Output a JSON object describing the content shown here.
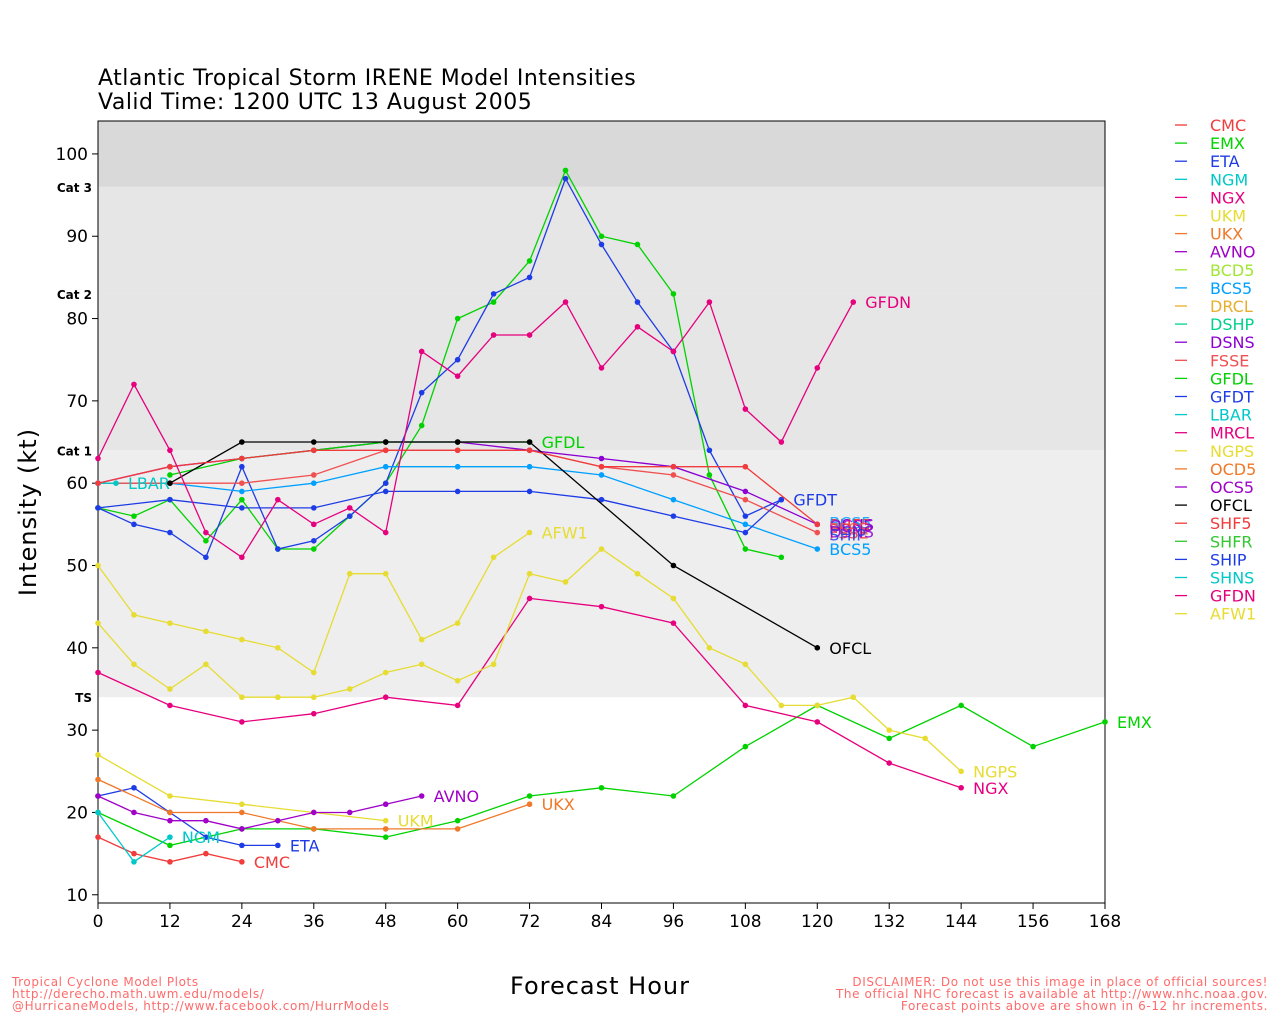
{
  "chart_data": {
    "type": "line",
    "title": "Atlantic Tropical Storm IRENE Model Intensities",
    "subtitle": "Valid Time: 1200 UTC 13 August 2005",
    "xlabel": "Forecast Hour",
    "ylabel": "Intensity (kt)",
    "xlim": [
      0,
      168
    ],
    "ylim": [
      9,
      104
    ],
    "xticks": [
      0,
      12,
      24,
      36,
      48,
      60,
      72,
      84,
      96,
      108,
      120,
      132,
      144,
      156,
      168
    ],
    "yticks": [
      10,
      20,
      30,
      40,
      50,
      60,
      70,
      80,
      90,
      100
    ],
    "bands": [
      {
        "label": "TS",
        "from": 34,
        "to": 64,
        "color": "#eeeeee"
      },
      {
        "label": "Cat 1",
        "from": 64,
        "to": 83,
        "color": "#e6e6e6"
      },
      {
        "label": "Cat 2",
        "from": 83,
        "to": 96,
        "color": "#e6e6e6"
      },
      {
        "label": "Cat 3",
        "from": 96,
        "to": 104,
        "color": "#d9d9d9"
      }
    ],
    "series": [
      {
        "name": "CMC",
        "color": "#f03c3c",
        "x": [
          0,
          6,
          12,
          18,
          24
        ],
        "y": [
          17,
          15,
          14,
          15,
          14
        ],
        "label": "CMC"
      },
      {
        "name": "EMX",
        "color": "#00d200",
        "x": [
          0,
          12,
          24,
          36,
          48,
          60,
          72,
          84,
          96,
          108,
          120,
          132,
          144,
          156,
          168
        ],
        "y": [
          20,
          16,
          18,
          18,
          17,
          19,
          22,
          23,
          22,
          28,
          33,
          29,
          33,
          28,
          31
        ],
        "label": "EMX"
      },
      {
        "name": "ETA",
        "color": "#1e3ce6",
        "x": [
          0,
          6,
          12,
          18,
          24,
          30
        ],
        "y": [
          22,
          23,
          20,
          17,
          16,
          16
        ],
        "label": "ETA"
      },
      {
        "name": "NGM",
        "color": "#00c8c8",
        "x": [
          0,
          6,
          12
        ],
        "y": [
          20,
          14,
          17
        ],
        "label": "NGM"
      },
      {
        "name": "NGX",
        "color": "#e6007e",
        "x": [
          0,
          12,
          24,
          36,
          48,
          60,
          72,
          84,
          96,
          108,
          120,
          132,
          144
        ],
        "y": [
          37,
          33,
          31,
          32,
          34,
          33,
          46,
          45,
          43,
          33,
          31,
          26,
          23
        ],
        "label": "NGX"
      },
      {
        "name": "UKM",
        "color": "#e6dc32",
        "x": [
          0,
          12,
          24,
          36,
          48
        ],
        "y": [
          27,
          22,
          21,
          20,
          19
        ],
        "label": "UKM"
      },
      {
        "name": "UKX",
        "color": "#f07828",
        "x": [
          0,
          12,
          24,
          36,
          48,
          60,
          72
        ],
        "y": [
          24,
          20,
          20,
          18,
          18,
          18,
          21
        ],
        "label": "UKX"
      },
      {
        "name": "AVNO",
        "color": "#a000c8",
        "x": [
          0,
          6,
          12,
          18,
          24,
          30,
          36,
          42,
          48,
          54
        ],
        "y": [
          22,
          20,
          19,
          19,
          18,
          19,
          20,
          20,
          21,
          22
        ],
        "label": "AVNO"
      },
      {
        "name": "BCD5",
        "color": "#a0e632",
        "x": [],
        "y": []
      },
      {
        "name": "BCS5",
        "color": "#00a0ff",
        "x": [
          0,
          12,
          24,
          36,
          48,
          60,
          72,
          84,
          96,
          108,
          120
        ],
        "y": [
          60,
          60,
          59,
          60,
          62,
          62,
          62,
          61,
          58,
          55,
          52
        ],
        "label": "BCS5"
      },
      {
        "name": "DRCL",
        "color": "#e6af2d",
        "x": [],
        "y": []
      },
      {
        "name": "DSHP",
        "color": "#00d28c",
        "x": [],
        "y": []
      },
      {
        "name": "DSNS",
        "color": "#8c00d2",
        "x": [
          0,
          12,
          24,
          36,
          48,
          60,
          72,
          84,
          96,
          108,
          120
        ],
        "y": [
          60,
          62,
          63,
          64,
          65,
          65,
          64,
          63,
          62,
          59,
          55
        ],
        "label": "DSNS"
      },
      {
        "name": "FSSE",
        "color": "#f05050",
        "x": [
          0,
          12,
          24,
          36,
          48,
          60,
          72,
          84,
          96,
          108,
          120
        ],
        "y": [
          60,
          60,
          60,
          61,
          64,
          64,
          64,
          62,
          61,
          58,
          54
        ],
        "label": "FSSE"
      },
      {
        "name": "GFDL",
        "color": "#00d200",
        "x": [
          12,
          24,
          36,
          48,
          60,
          72
        ],
        "y": [
          61,
          63,
          64,
          65,
          65,
          65
        ],
        "label": "GFDL"
      },
      {
        "name": "GFDT",
        "color": "#1e3ce6",
        "x": [
          0,
          12,
          24,
          36,
          48,
          60,
          72,
          84,
          96,
          108,
          114
        ],
        "y": [
          57,
          58,
          57,
          57,
          59,
          59,
          59,
          58,
          56,
          54,
          58
        ],
        "label": "GFDT"
      },
      {
        "name": "LBAR",
        "color": "#00c8c8",
        "x": [
          0,
          3
        ],
        "y": [
          60,
          60
        ],
        "label": "LBAR"
      },
      {
        "name": "MRCL",
        "color": "#e6007e",
        "x": [],
        "y": []
      },
      {
        "name": "NGPS",
        "color": "#e6dc32",
        "x": [
          0,
          6,
          12,
          18,
          24,
          30,
          36,
          42,
          48,
          54,
          60,
          66,
          72,
          78,
          84,
          90,
          96,
          102,
          108,
          114,
          120,
          126,
          132,
          138,
          144
        ],
        "y": [
          43,
          38,
          35,
          38,
          34,
          34,
          34,
          35,
          37,
          38,
          36,
          38,
          49,
          48,
          52,
          49,
          46,
          40,
          38,
          33,
          33,
          34,
          30,
          29,
          25
        ],
        "label": "NGPS"
      },
      {
        "name": "OCD5",
        "color": "#f07828",
        "x": [],
        "y": []
      },
      {
        "name": "OCS5",
        "color": "#a000c8",
        "x": [],
        "y": []
      },
      {
        "name": "OFCL",
        "color": "#000000",
        "x": [
          12,
          24,
          36,
          48,
          60,
          72,
          96,
          120
        ],
        "y": [
          60,
          65,
          65,
          65,
          65,
          65,
          50,
          40
        ],
        "label": "OFCL"
      },
      {
        "name": "SHF5",
        "color": "#f03c3c",
        "x": [
          0,
          12,
          24,
          36,
          48,
          60,
          72,
          84,
          96,
          108,
          120
        ],
        "y": [
          60,
          62,
          63,
          64,
          64,
          64,
          64,
          62,
          62,
          62,
          55
        ],
        "label": "SHF5"
      },
      {
        "name": "SHFR",
        "color": "#32c832",
        "x": [],
        "y": []
      },
      {
        "name": "SHIP",
        "color": "#1e3ce6",
        "x": [],
        "y": []
      },
      {
        "name": "SHNS",
        "color": "#00c8c8",
        "x": [],
        "y": []
      },
      {
        "name": "GFDN",
        "color": "#e6007e",
        "x": [
          0,
          6,
          12,
          18,
          24,
          30,
          36,
          42,
          48,
          54,
          60,
          66,
          72,
          78,
          84,
          90,
          96,
          102,
          108,
          114,
          120,
          126
        ],
        "y": [
          63,
          72,
          64,
          54,
          51,
          58,
          55,
          57,
          54,
          76,
          73,
          78,
          78,
          82,
          74,
          79,
          76,
          82,
          69,
          65,
          74,
          82
        ],
        "label": "GFDN"
      },
      {
        "name": "AFW1",
        "color": "#e6dc32",
        "x": [
          0,
          6,
          12,
          18,
          24,
          30,
          36,
          42,
          48,
          54,
          60,
          66,
          72
        ],
        "y": [
          50,
          44,
          43,
          42,
          41,
          40,
          37,
          49,
          49,
          41,
          43,
          51,
          54
        ],
        "label": "AFW1"
      }
    ],
    "extra_series": [
      {
        "name": "EMX-high",
        "color": "#00d200",
        "x": [
          0,
          6,
          12,
          18,
          24,
          30,
          36,
          42,
          48,
          54,
          60,
          66,
          72,
          78,
          84,
          90,
          96,
          102,
          108,
          114
        ],
        "y": [
          57,
          56,
          58,
          53,
          58,
          52,
          52,
          56,
          60,
          67,
          80,
          82,
          87,
          98,
          90,
          89,
          83,
          61,
          52,
          51
        ]
      },
      {
        "name": "ETA-high",
        "color": "#1e3ce6",
        "x": [
          0,
          6,
          12,
          18,
          24,
          30,
          36,
          42,
          48,
          54,
          60,
          66,
          72,
          78,
          84,
          90,
          96,
          102,
          108,
          114
        ],
        "y": [
          57,
          55,
          54,
          51,
          62,
          52,
          53,
          56,
          60,
          71,
          75,
          83,
          85,
          97,
          89,
          82,
          76,
          64,
          56,
          58
        ]
      }
    ],
    "overlap_labels": [
      "BCS5",
      "OCS5",
      "FSSE",
      "DSNS",
      "SHIP"
    ]
  },
  "texts": {
    "title_line1": "Atlantic Tropical Storm IRENE Model Intensities",
    "title_line2": "Valid Time: 1200 UTC 13 August 2005",
    "xlabel": "Forecast Hour",
    "ylabel": "Intensity (kt)",
    "footer_left": [
      "Tropical Cyclone Model Plots",
      "http://derecho.math.uwm.edu/models/",
      "@HurricaneModels, http://www.facebook.com/HurrModels"
    ],
    "footer_right": [
      "DISCLAIMER: Do not use this image in place of official sources!",
      "The official NHC forecast is available at http://www.nhc.noaa.gov.",
      "Forecast points above are shown in 6-12 hr increments."
    ]
  }
}
